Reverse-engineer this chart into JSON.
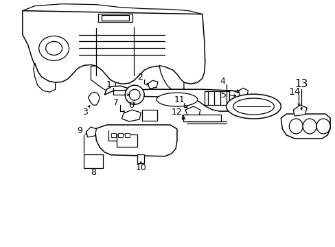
{
  "background_color": "#ffffff",
  "line_color": "#000000",
  "font_size": 8,
  "dpi": 100,
  "figsize": [
    4.89,
    3.6
  ]
}
